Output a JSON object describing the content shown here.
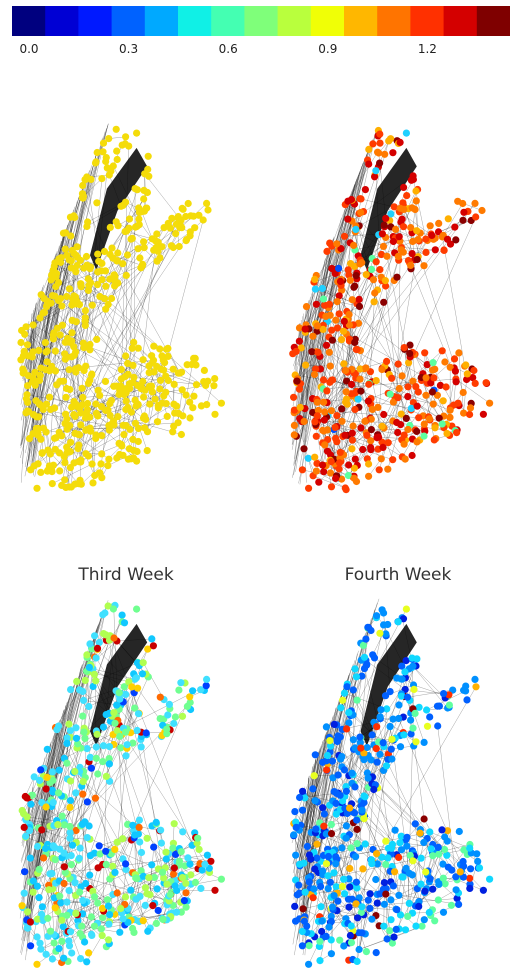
{
  "colorbar": {
    "colors": [
      "#00007f",
      "#0000d4",
      "#0019ff",
      "#0062ff",
      "#00a9ff",
      "#10f0e6",
      "#44ffb2",
      "#7fff7a",
      "#b9ff3d",
      "#f0ff06",
      "#ffb700",
      "#ff7400",
      "#ff3000",
      "#d40000",
      "#7f0000"
    ],
    "tick_labels": [
      "0.0",
      "0.3",
      "0.6",
      "0.9",
      "1.2"
    ],
    "range": [
      0.0,
      1.5
    ]
  },
  "panels": [
    {
      "title": "",
      "palette": [
        [
          "#f4dc0a",
          1
        ]
      ]
    },
    {
      "title": "",
      "palette": [
        [
          "#ff7a00",
          3
        ],
        [
          "#ff3c00",
          3
        ],
        [
          "#d40000",
          2
        ],
        [
          "#8b0000",
          1
        ],
        [
          "#ffb000",
          1
        ],
        [
          "#5cffa0",
          0.25
        ],
        [
          "#20d0ff",
          0.2
        ],
        [
          "#0050ff",
          0.1
        ]
      ]
    },
    {
      "title": "Third Week",
      "palette": [
        [
          "#40e0ff",
          3
        ],
        [
          "#10c8ff",
          2
        ],
        [
          "#70ff90",
          2
        ],
        [
          "#b0ff50",
          1.5
        ],
        [
          "#ffd000",
          0.6
        ],
        [
          "#ff6a00",
          0.4
        ],
        [
          "#c80000",
          0.4
        ],
        [
          "#0040ff",
          0.3
        ]
      ]
    },
    {
      "title": "Fourth Week",
      "palette": [
        [
          "#0060ff",
          3
        ],
        [
          "#0090ff",
          2.5
        ],
        [
          "#10d8ff",
          1.5
        ],
        [
          "#0020e0",
          1
        ],
        [
          "#60ffa0",
          0.8
        ],
        [
          "#e8ff20",
          0.4
        ],
        [
          "#ffb000",
          0.3
        ],
        [
          "#ff3000",
          0.25
        ],
        [
          "#8b0000",
          0.25
        ]
      ]
    }
  ]
}
